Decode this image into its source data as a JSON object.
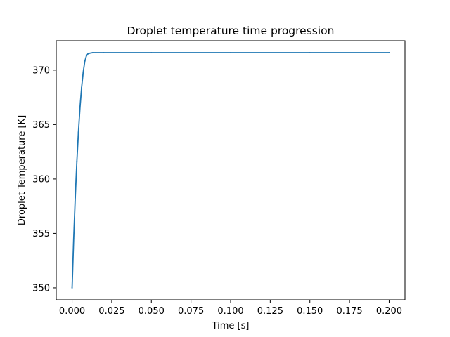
{
  "chart_data": {
    "type": "line",
    "title": "Droplet temperature time progression",
    "xlabel": "Time [s]",
    "ylabel": "Droplet Temperature [K]",
    "xlim": [
      -0.01,
      0.21
    ],
    "ylim": [
      348.9,
      372.7
    ],
    "xticks": [
      0.0,
      0.025,
      0.05,
      0.075,
      0.1,
      0.125,
      0.15,
      0.175,
      0.2
    ],
    "xtick_labels": [
      "0.000",
      "0.025",
      "0.050",
      "0.075",
      "0.100",
      "0.125",
      "0.150",
      "0.175",
      "0.200"
    ],
    "yticks": [
      350,
      355,
      360,
      365,
      370
    ],
    "ytick_labels": [
      "350",
      "355",
      "360",
      "365",
      "370"
    ],
    "grid": false,
    "series": [
      {
        "name": "Droplet temperature",
        "color": "#1f77b4",
        "x": [
          0.0,
          0.001,
          0.002,
          0.003,
          0.004,
          0.005,
          0.006,
          0.007,
          0.008,
          0.009,
          0.01,
          0.011,
          0.012,
          0.013,
          0.015,
          0.02,
          0.05,
          0.1,
          0.15,
          0.2
        ],
        "y": [
          350.0,
          354.5,
          358.3,
          361.6,
          364.3,
          366.6,
          368.4,
          369.8,
          370.8,
          371.3,
          371.5,
          371.55,
          371.58,
          371.6,
          371.6,
          371.6,
          371.6,
          371.6,
          371.6,
          371.6
        ]
      }
    ]
  }
}
